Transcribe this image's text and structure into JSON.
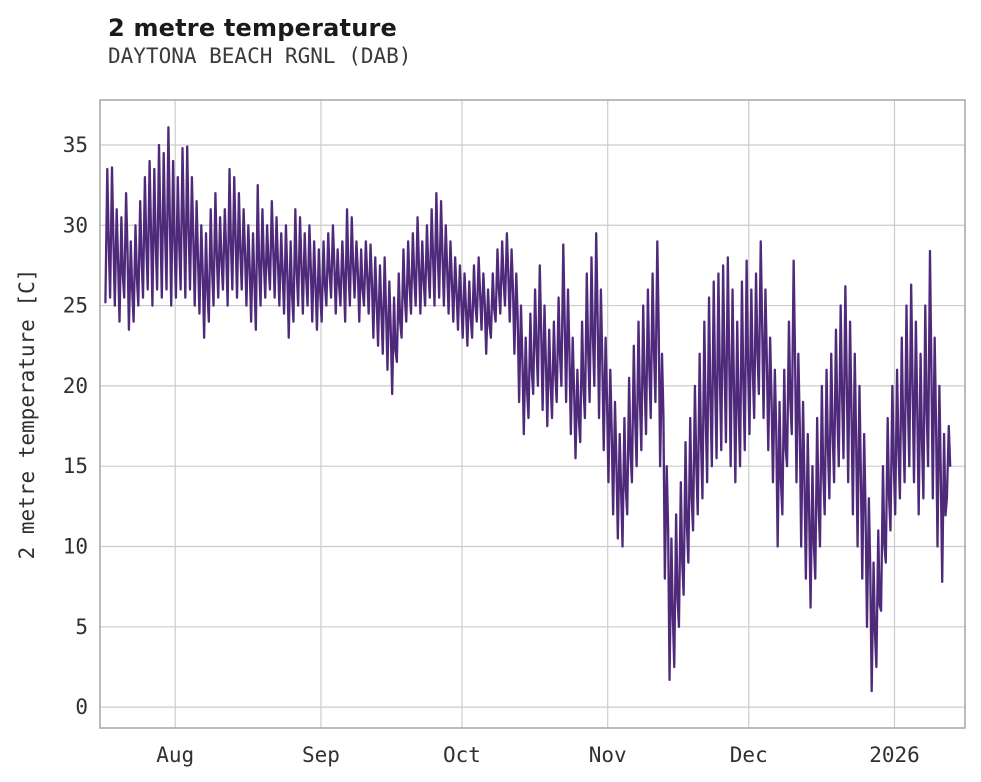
{
  "header": {
    "title": "2 metre temperature",
    "subtitle": "DAYTONA BEACH RGNL (DAB)"
  },
  "chart_data": {
    "type": "line",
    "title": "2 metre temperature",
    "subtitle": "DAYTONA BEACH RGNL (DAB)",
    "xlabel": "",
    "ylabel": "2 metre temperature [C]",
    "line_color": "#4f2a7a",
    "grid_color": "#cccccc",
    "spine_color": "#a6a6a6",
    "grid": true,
    "legend": "none",
    "ylim": [
      -1.3,
      37.8
    ],
    "yticks": [
      0,
      5,
      10,
      15,
      20,
      25,
      30,
      35
    ],
    "xlim_days": [
      -1,
      183
    ],
    "xticks": [
      {
        "label": "Aug",
        "day": 15
      },
      {
        "label": "Sep",
        "day": 46
      },
      {
        "label": "Oct",
        "day": 76
      },
      {
        "label": "Nov",
        "day": 107
      },
      {
        "label": "Dec",
        "day": 137
      },
      {
        "label": "2026",
        "day": 168
      }
    ],
    "series_note": "hourly 2 m temperature depicted; encoded here as estimated daily [min,max] pairs, day 0 = first plotted day (~2 weeks before Aug tick)",
    "daily_min_max": [
      [
        25.2,
        33.5
      ],
      [
        25.5,
        33.6
      ],
      [
        25.0,
        31.0
      ],
      [
        24.0,
        30.5
      ],
      [
        25.5,
        32.0
      ],
      [
        23.5,
        29.0
      ],
      [
        24.0,
        30.0
      ],
      [
        25.0,
        31.5
      ],
      [
        25.5,
        33.0
      ],
      [
        26.0,
        34.0
      ],
      [
        25.0,
        33.5
      ],
      [
        26.0,
        35.0
      ],
      [
        25.5,
        34.5
      ],
      [
        26.0,
        36.1
      ],
      [
        25.0,
        34.0
      ],
      [
        25.5,
        33.0
      ],
      [
        26.0,
        34.8
      ],
      [
        25.5,
        34.9
      ],
      [
        26.0,
        33.0
      ],
      [
        25.0,
        31.5
      ],
      [
        24.5,
        30.0
      ],
      [
        23.0,
        29.5
      ],
      [
        24.0,
        31.0
      ],
      [
        25.0,
        32.0
      ],
      [
        25.5,
        30.5
      ],
      [
        26.0,
        31.0
      ],
      [
        25.0,
        33.5
      ],
      [
        26.0,
        33.0
      ],
      [
        25.5,
        32.0
      ],
      [
        26.0,
        31.0
      ],
      [
        25.0,
        30.0
      ],
      [
        24.0,
        29.5
      ],
      [
        23.5,
        32.5
      ],
      [
        25.0,
        31.0
      ],
      [
        25.5,
        30.0
      ],
      [
        26.0,
        31.5
      ],
      [
        25.5,
        30.5
      ],
      [
        25.0,
        29.5
      ],
      [
        24.5,
        30.0
      ],
      [
        23.0,
        29.0
      ],
      [
        24.0,
        31.0
      ],
      [
        25.0,
        30.5
      ],
      [
        24.5,
        29.5
      ],
      [
        25.0,
        30.0
      ],
      [
        24.0,
        29.0
      ],
      [
        23.5,
        28.5
      ],
      [
        24.0,
        29.0
      ],
      [
        25.0,
        29.5
      ],
      [
        25.5,
        30.0
      ],
      [
        24.5,
        28.5
      ],
      [
        25.0,
        29.0
      ],
      [
        24.0,
        31.0
      ],
      [
        25.0,
        30.5
      ],
      [
        25.5,
        29.0
      ],
      [
        24.0,
        28.5
      ],
      [
        25.0,
        29.0
      ],
      [
        24.5,
        28.8
      ],
      [
        23.0,
        28.0
      ],
      [
        22.5,
        27.5
      ],
      [
        22.0,
        28.0
      ],
      [
        21.0,
        26.5
      ],
      [
        19.5,
        25.5
      ],
      [
        21.5,
        27.0
      ],
      [
        23.0,
        28.5
      ],
      [
        24.0,
        29.0
      ],
      [
        24.5,
        29.5
      ],
      [
        25.0,
        30.5
      ],
      [
        24.5,
        29.0
      ],
      [
        25.0,
        30.0
      ],
      [
        25.5,
        31.0
      ],
      [
        25.0,
        32.0
      ],
      [
        25.5,
        31.5
      ],
      [
        25.0,
        30.0
      ],
      [
        24.5,
        29.0
      ],
      [
        24.0,
        28.0
      ],
      [
        23.5,
        27.5
      ],
      [
        23.0,
        27.0
      ],
      [
        22.5,
        26.5
      ],
      [
        23.0,
        27.5
      ],
      [
        24.0,
        28.0
      ],
      [
        23.5,
        27.0
      ],
      [
        22.0,
        26.0
      ],
      [
        23.0,
        27.0
      ],
      [
        24.0,
        28.5
      ],
      [
        24.5,
        29.0
      ],
      [
        25.0,
        29.5
      ],
      [
        24.0,
        28.5
      ],
      [
        22.0,
        27.0
      ],
      [
        19.0,
        25.0
      ],
      [
        17.0,
        23.0
      ],
      [
        18.0,
        24.5
      ],
      [
        19.5,
        26.0
      ],
      [
        20.0,
        27.5
      ],
      [
        18.5,
        25.0
      ],
      [
        17.5,
        23.5
      ],
      [
        18.0,
        24.0
      ],
      [
        19.0,
        25.5
      ],
      [
        20.0,
        28.8
      ],
      [
        19.0,
        26.0
      ],
      [
        17.0,
        23.0
      ],
      [
        15.5,
        21.0
      ],
      [
        16.5,
        24.0
      ],
      [
        18.0,
        27.0
      ],
      [
        19.0,
        28.0
      ],
      [
        20.0,
        29.5
      ],
      [
        18.0,
        26.0
      ],
      [
        16.0,
        23.0
      ],
      [
        14.0,
        21.0
      ],
      [
        12.0,
        19.0
      ],
      [
        10.5,
        17.0
      ],
      [
        10.0,
        18.0
      ],
      [
        12.0,
        20.5
      ],
      [
        14.0,
        22.5
      ],
      [
        15.0,
        24.0
      ],
      [
        16.0,
        25.0
      ],
      [
        17.0,
        26.0
      ],
      [
        18.0,
        27.0
      ],
      [
        19.0,
        29.0
      ],
      [
        15.0,
        22.0
      ],
      [
        8.0,
        15.0
      ],
      [
        1.7,
        10.5
      ],
      [
        2.5,
        12.0
      ],
      [
        5.0,
        14.0
      ],
      [
        7.0,
        16.5
      ],
      [
        9.0,
        18.0
      ],
      [
        11.0,
        20.0
      ],
      [
        12.0,
        22.0
      ],
      [
        13.0,
        24.0
      ],
      [
        14.0,
        25.5
      ],
      [
        15.0,
        26.5
      ],
      [
        15.5,
        27.0
      ],
      [
        16.0,
        27.5
      ],
      [
        16.5,
        28.0
      ],
      [
        15.0,
        26.0
      ],
      [
        14.0,
        24.0
      ],
      [
        15.0,
        26.5
      ],
      [
        16.0,
        27.8
      ],
      [
        17.0,
        26.0
      ],
      [
        18.0,
        27.0
      ],
      [
        19.5,
        29.0
      ],
      [
        18.0,
        26.0
      ],
      [
        16.0,
        23.0
      ],
      [
        14.0,
        21.0
      ],
      [
        10.0,
        19.0
      ],
      [
        12.0,
        21.0
      ],
      [
        15.0,
        24.0
      ],
      [
        17.0,
        27.8
      ],
      [
        14.0,
        22.0
      ],
      [
        10.0,
        19.0
      ],
      [
        8.0,
        17.0
      ],
      [
        6.2,
        15.0
      ],
      [
        8.0,
        18.0
      ],
      [
        10.0,
        20.0
      ],
      [
        12.0,
        21.0
      ],
      [
        13.0,
        22.0
      ],
      [
        14.0,
        23.5
      ],
      [
        15.0,
        25.0
      ],
      [
        15.5,
        26.2
      ],
      [
        14.0,
        24.0
      ],
      [
        12.0,
        22.0
      ],
      [
        10.0,
        20.0
      ],
      [
        8.0,
        17.0
      ],
      [
        5.0,
        13.0
      ],
      [
        1.0,
        9.0
      ],
      [
        2.5,
        11.0
      ],
      [
        6.0,
        15.0
      ],
      [
        9.0,
        18.0
      ],
      [
        11.0,
        20.0
      ],
      [
        12.0,
        21.0
      ],
      [
        13.0,
        23.0
      ],
      [
        14.0,
        25.0
      ],
      [
        15.0,
        26.3
      ],
      [
        14.0,
        24.0
      ],
      [
        12.0,
        22.0
      ],
      [
        13.0,
        25.0
      ],
      [
        15.0,
        28.4
      ],
      [
        13.0,
        23.0
      ],
      [
        10.0,
        20.0
      ],
      [
        7.8,
        17.0
      ],
      [
        13.0,
        17.5
      ]
    ]
  }
}
